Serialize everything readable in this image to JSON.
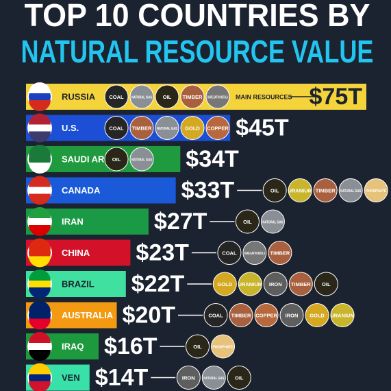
{
  "chart_data": {
    "type": "bar",
    "orientation": "horizontal",
    "title": "TOP 10 COUNTRIES BY",
    "subtitle": "NATURAL RESOURCE VALUE",
    "annotation": "MAIN RESOURCES",
    "categories": [
      "RUSSIA",
      "U.S.",
      "SAUDI ARABIA",
      "CANADA",
      "IRAN",
      "CHINA",
      "BRAZIL",
      "AUSTRALIA",
      "IRAQ",
      "VEN"
    ],
    "values": [
      75,
      45,
      34,
      33,
      27,
      23,
      22,
      20,
      16,
      14
    ],
    "value_labels": [
      "$75T",
      "$45T",
      "$34T",
      "$33T",
      "$27T",
      "$23T",
      "$22T",
      "$20T",
      "$16T",
      "$14T"
    ],
    "colors": [
      "#f5d33a",
      "#1c4fd6",
      "#1f9a3e",
      "#1a5ad8",
      "#1b9a45",
      "#d3122a",
      "#3fe0a0",
      "#f39a12",
      "#1d9a3e",
      "#39e0a8"
    ],
    "resources": [
      [
        "COAL",
        "NATURAL GAS",
        "OIL",
        "TIMBER",
        "RARE EARTH METALS"
      ],
      [
        "COAL",
        "TIMBER",
        "NATURAL GAS",
        "GOLD",
        "COPPER"
      ],
      [
        "OIL",
        "NATURAL GAS"
      ],
      [
        "OIL",
        "URANIUM",
        "TIMBER",
        "NATURAL GAS",
        "PHOSPHATE"
      ],
      [
        "OIL",
        "NATURAL GAS"
      ],
      [
        "COAL",
        "RARE EARTH METALS",
        "TIMBER"
      ],
      [
        "GOLD",
        "URANIUM",
        "IRON",
        "TIMBER",
        "OIL"
      ],
      [
        "COAL",
        "TIMBER",
        "COPPER",
        "IRON",
        "GOLD",
        "URANIUM"
      ],
      [
        "OIL",
        "PHOSPHATE"
      ],
      [
        "IRON",
        "NATURAL GAS",
        "OIL"
      ]
    ]
  }
}
